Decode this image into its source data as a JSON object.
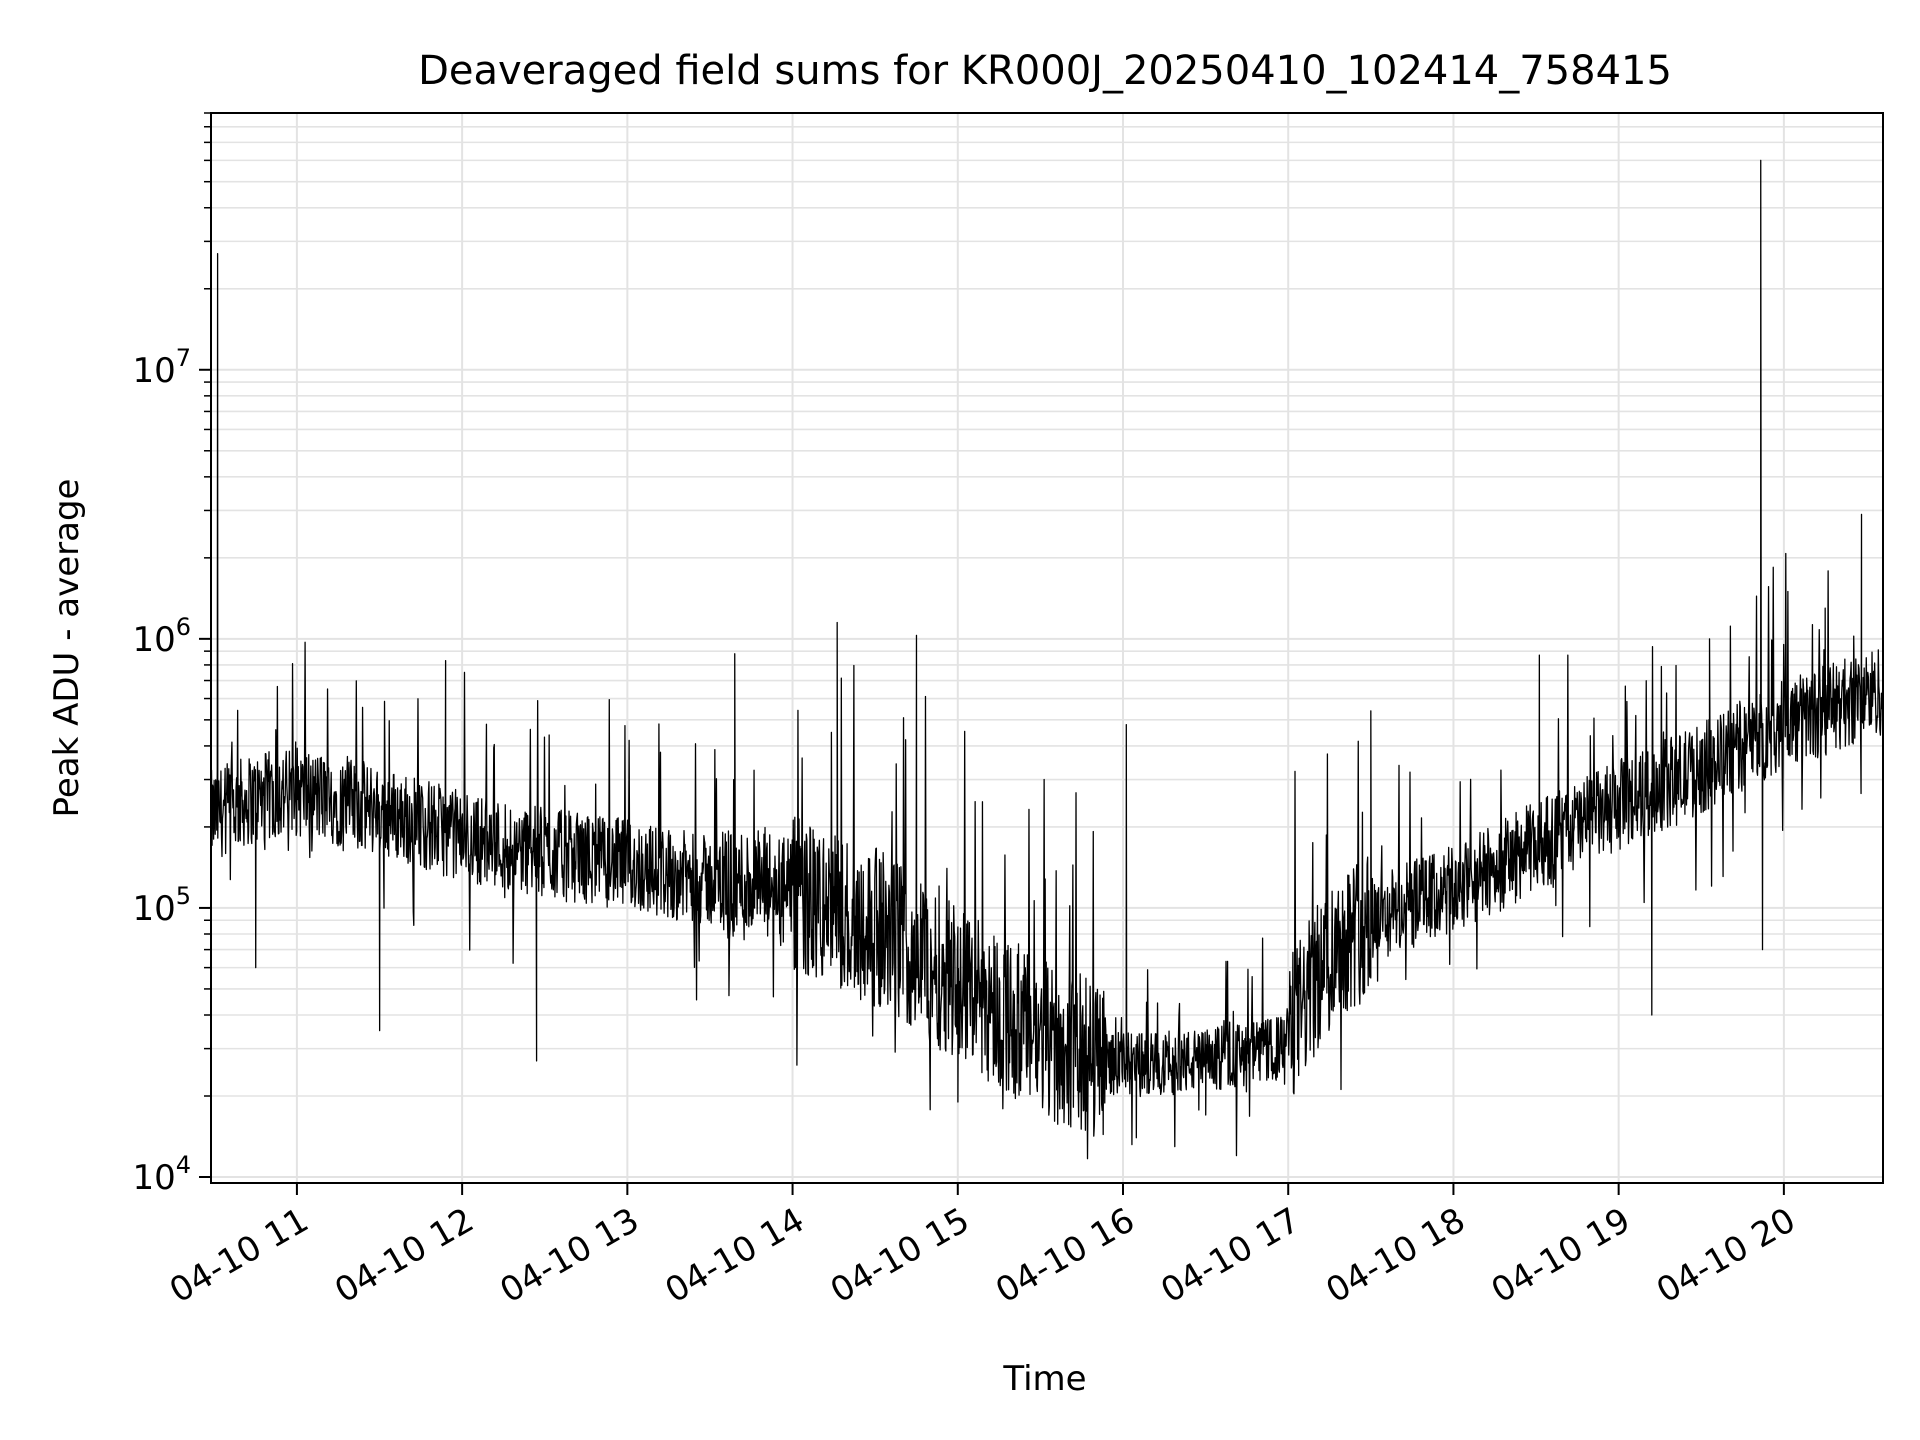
{
  "chart_data": {
    "type": "line",
    "title": "Deaveraged field sums for KR000J_20250410_102414_758415",
    "xlabel": "Time",
    "ylabel": "Peak ADU - average",
    "yscale": "log",
    "ylim": [
      9500,
      90000000
    ],
    "xlim_hours": [
      10.48,
      20.6
    ],
    "grid": true,
    "line_color": "#000000",
    "grid_color": "#e3e3e3",
    "x_ticks": [
      {
        "hour": 11,
        "label": "04-10 11"
      },
      {
        "hour": 12,
        "label": "04-10 12"
      },
      {
        "hour": 13,
        "label": "04-10 13"
      },
      {
        "hour": 14,
        "label": "04-10 14"
      },
      {
        "hour": 15,
        "label": "04-10 15"
      },
      {
        "hour": 16,
        "label": "04-10 16"
      },
      {
        "hour": 17,
        "label": "04-10 17"
      },
      {
        "hour": 18,
        "label": "04-10 18"
      },
      {
        "hour": 19,
        "label": "04-10 19"
      },
      {
        "hour": 20,
        "label": "04-10 20"
      }
    ],
    "y_ticks": [
      {
        "value": 10000,
        "base": "10",
        "exp": "4"
      },
      {
        "value": 100000,
        "base": "10",
        "exp": "5"
      },
      {
        "value": 1000000,
        "base": "10",
        "exp": "6"
      },
      {
        "value": 10000000,
        "base": "10",
        "exp": "7"
      }
    ],
    "series": [
      {
        "trend": [
          [
            10.48,
            220000
          ],
          [
            10.7,
            250000
          ],
          [
            11.0,
            270000
          ],
          [
            11.5,
            230000
          ],
          [
            12.0,
            185000
          ],
          [
            12.5,
            160000
          ],
          [
            13.0,
            145000
          ],
          [
            13.5,
            125000
          ],
          [
            13.85,
            120000
          ],
          [
            14.0,
            110000
          ],
          [
            14.5,
            85000
          ],
          [
            15.0,
            55000
          ],
          [
            15.5,
            32000
          ],
          [
            16.0,
            26000
          ],
          [
            16.5,
            27000
          ],
          [
            16.95,
            30000
          ],
          [
            17.3,
            75000
          ],
          [
            17.6,
            95000
          ],
          [
            18.0,
            115000
          ],
          [
            18.5,
            170000
          ],
          [
            19.0,
            240000
          ],
          [
            19.5,
            330000
          ],
          [
            20.0,
            480000
          ],
          [
            20.6,
            650000
          ]
        ],
        "spikes": [
          [
            10.52,
            27000000
          ],
          [
            11.9,
            830000
          ],
          [
            13.65,
            880000
          ],
          [
            14.27,
            1150000
          ],
          [
            14.75,
            1030000
          ],
          [
            16.02,
            480000
          ],
          [
            17.5,
            540000
          ],
          [
            18.52,
            870000
          ],
          [
            19.86,
            60000000
          ],
          [
            20.47,
            2900000
          ],
          [
            20.25,
            1300000
          ],
          [
            19.55,
            1000000
          ]
        ],
        "dips": [
          [
            10.75,
            60000
          ],
          [
            11.5,
            35000
          ],
          [
            12.45,
            27000
          ],
          [
            15.0,
            19000
          ],
          [
            16.08,
            14000
          ],
          [
            16.5,
            17000
          ],
          [
            19.87,
            70000
          ],
          [
            19.2,
            40000
          ]
        ]
      }
    ]
  }
}
